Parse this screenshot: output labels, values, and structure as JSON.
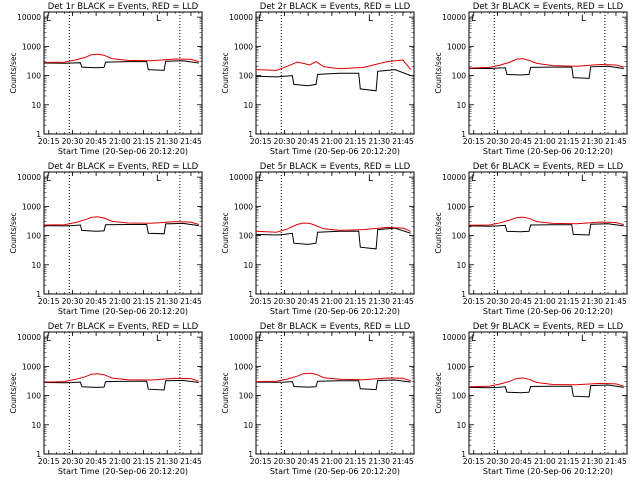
{
  "figure": {
    "background": "#ffffff",
    "event_color": "#000000",
    "lld_color": "#dd0000",
    "marker_color": "#000000"
  },
  "chart_data": [
    {
      "type": "line",
      "title": "Det 1r BLACK = Events, RED = LLD",
      "xlabel": "Start Time (20-Sep-06 20:12:20)",
      "ylabel": "Counts/sec",
      "x_ticks": [
        "20:15",
        "20:30",
        "20:45",
        "21:00",
        "21:15",
        "21:30",
        "21:45"
      ],
      "y_ticks": [
        "1",
        "10",
        "100",
        "1000",
        "10000"
      ],
      "xlim": [
        "20:12",
        "21:52"
      ],
      "ylim": [
        1,
        15000
      ],
      "y_scale": "log",
      "marker_label": "L",
      "vertical_markers": [
        "20:28",
        "21:38"
      ],
      "series": [
        {
          "name": "Events",
          "color": "#000000",
          "x": [
            "20:12",
            "20:25",
            "20:30",
            "20:35",
            "20:36",
            "20:45",
            "20:50",
            "20:51",
            "21:05",
            "21:17",
            "21:18",
            "21:28",
            "21:29",
            "21:40",
            "21:50"
          ],
          "y": [
            270,
            265,
            270,
            275,
            195,
            185,
            190,
            290,
            300,
            300,
            160,
            150,
            310,
            320,
            270
          ]
        },
        {
          "name": "LLD",
          "color": "#dd0000",
          "x": [
            "20:12",
            "20:25",
            "20:32",
            "20:38",
            "20:42",
            "20:46",
            "20:50",
            "20:55",
            "21:05",
            "21:20",
            "21:35",
            "21:45",
            "21:50"
          ],
          "y": [
            280,
            290,
            340,
            420,
            520,
            540,
            500,
            380,
            330,
            320,
            370,
            360,
            300
          ]
        }
      ]
    },
    {
      "type": "line",
      "title": "Det 2r BLACK = Events, RED = LLD",
      "xlabel": "Start Time (20-Sep-06 20:12:20)",
      "ylabel": "Counts/sec",
      "x_ticks": [
        "20:15",
        "20:30",
        "20:45",
        "21:00",
        "21:15",
        "21:30",
        "21:45"
      ],
      "y_ticks": [
        "1",
        "10",
        "100",
        "1000",
        "10000"
      ],
      "xlim": [
        "20:12",
        "21:52"
      ],
      "ylim": [
        1,
        15000
      ],
      "y_scale": "log",
      "marker_label": "L",
      "vertical_markers": [
        "20:28",
        "21:38"
      ],
      "series": [
        {
          "name": "Events",
          "color": "#000000",
          "x": [
            "20:12",
            "20:25",
            "20:30",
            "20:35",
            "20:36",
            "20:45",
            "20:50",
            "20:51",
            "21:05",
            "21:17",
            "21:18",
            "21:28",
            "21:29",
            "21:40",
            "21:50"
          ],
          "y": [
            95,
            90,
            95,
            100,
            50,
            45,
            50,
            110,
            120,
            120,
            35,
            30,
            140,
            160,
            100
          ]
        },
        {
          "name": "LLD",
          "color": "#dd0000",
          "x": [
            "20:12",
            "20:25",
            "20:32",
            "20:38",
            "20:42",
            "20:46",
            "20:50",
            "20:55",
            "21:05",
            "21:20",
            "21:35",
            "21:45",
            "21:50"
          ],
          "y": [
            160,
            150,
            210,
            290,
            260,
            230,
            300,
            200,
            170,
            190,
            300,
            340,
            160
          ]
        }
      ]
    },
    {
      "type": "line",
      "title": "Det 3r BLACK = Events, RED = LLD",
      "xlabel": "Start Time (20-Sep-06 20:12:20)",
      "ylabel": "Counts/sec",
      "x_ticks": [
        "20:15",
        "20:30",
        "20:45",
        "21:00",
        "21:15",
        "21:30",
        "21:45"
      ],
      "y_ticks": [
        "1",
        "10",
        "100",
        "1000",
        "10000"
      ],
      "xlim": [
        "20:12",
        "21:52"
      ],
      "ylim": [
        1,
        15000
      ],
      "y_scale": "log",
      "marker_label": "L",
      "vertical_markers": [
        "20:28",
        "21:38"
      ],
      "series": [
        {
          "name": "Events",
          "color": "#000000",
          "x": [
            "20:12",
            "20:25",
            "20:30",
            "20:35",
            "20:36",
            "20:45",
            "20:50",
            "20:51",
            "21:05",
            "21:17",
            "21:18",
            "21:28",
            "21:29",
            "21:40",
            "21:50"
          ],
          "y": [
            175,
            175,
            180,
            185,
            110,
            105,
            110,
            190,
            195,
            195,
            85,
            80,
            200,
            210,
            175
          ]
        },
        {
          "name": "LLD",
          "color": "#dd0000",
          "x": [
            "20:12",
            "20:25",
            "20:32",
            "20:38",
            "20:42",
            "20:46",
            "20:50",
            "20:55",
            "21:05",
            "21:20",
            "21:35",
            "21:45",
            "21:50"
          ],
          "y": [
            180,
            190,
            230,
            290,
            360,
            380,
            330,
            260,
            220,
            210,
            240,
            230,
            195
          ]
        }
      ]
    },
    {
      "type": "line",
      "title": "Det 4r BLACK = Events, RED = LLD",
      "xlabel": "Start Time (20-Sep-06 20:12:20)",
      "ylabel": "Counts/sec",
      "x_ticks": [
        "20:15",
        "20:30",
        "20:45",
        "21:00",
        "21:15",
        "21:30",
        "21:45"
      ],
      "y_ticks": [
        "1",
        "10",
        "100",
        "1000",
        "10000"
      ],
      "xlim": [
        "20:12",
        "21:52"
      ],
      "ylim": [
        1,
        15000
      ],
      "y_scale": "log",
      "marker_label": "L",
      "vertical_markers": [
        "20:28",
        "21:38"
      ],
      "series": [
        {
          "name": "Events",
          "color": "#000000",
          "x": [
            "20:12",
            "20:25",
            "20:30",
            "20:35",
            "20:36",
            "20:45",
            "20:50",
            "20:51",
            "21:05",
            "21:17",
            "21:18",
            "21:28",
            "21:29",
            "21:40",
            "21:50"
          ],
          "y": [
            220,
            215,
            220,
            230,
            150,
            140,
            145,
            235,
            240,
            240,
            120,
            115,
            250,
            260,
            220
          ]
        },
        {
          "name": "LLD",
          "color": "#dd0000",
          "x": [
            "20:12",
            "20:25",
            "20:32",
            "20:38",
            "20:42",
            "20:46",
            "20:50",
            "20:55",
            "21:05",
            "21:20",
            "21:35",
            "21:45",
            "21:50"
          ],
          "y": [
            230,
            235,
            280,
            350,
            420,
            440,
            400,
            310,
            270,
            265,
            300,
            290,
            240
          ]
        }
      ]
    },
    {
      "type": "line",
      "title": "Det 5r BLACK = Events, RED = LLD",
      "xlabel": "Start Time (20-Sep-06 20:12:20)",
      "ylabel": "Counts/sec",
      "x_ticks": [
        "20:15",
        "20:30",
        "20:45",
        "21:00",
        "21:15",
        "21:30",
        "21:45"
      ],
      "y_ticks": [
        "1",
        "10",
        "100",
        "1000",
        "10000"
      ],
      "xlim": [
        "20:12",
        "21:52"
      ],
      "ylim": [
        1,
        15000
      ],
      "y_scale": "log",
      "marker_label": "L",
      "vertical_markers": [
        "20:28",
        "21:38"
      ],
      "series": [
        {
          "name": "Events",
          "color": "#000000",
          "x": [
            "20:12",
            "20:25",
            "20:30",
            "20:35",
            "20:36",
            "20:45",
            "20:50",
            "20:51",
            "21:05",
            "21:17",
            "21:18",
            "21:28",
            "21:29",
            "21:40",
            "21:50"
          ],
          "y": [
            110,
            105,
            110,
            120,
            55,
            50,
            55,
            130,
            140,
            140,
            40,
            35,
            160,
            180,
            120
          ]
        },
        {
          "name": "LLD",
          "color": "#dd0000",
          "x": [
            "20:12",
            "20:25",
            "20:32",
            "20:38",
            "20:42",
            "20:46",
            "20:50",
            "20:55",
            "21:05",
            "21:20",
            "21:35",
            "21:45",
            "21:50"
          ],
          "y": [
            140,
            130,
            170,
            240,
            270,
            260,
            220,
            170,
            150,
            160,
            190,
            180,
            140
          ]
        }
      ]
    },
    {
      "type": "line",
      "title": "Det 6r BLACK = Events, RED = LLD",
      "xlabel": "Start Time (20-Sep-06 20:12:20)",
      "ylabel": "Counts/sec",
      "x_ticks": [
        "20:15",
        "20:30",
        "20:45",
        "21:00",
        "21:15",
        "21:30",
        "21:45"
      ],
      "y_ticks": [
        "1",
        "10",
        "100",
        "1000",
        "10000"
      ],
      "xlim": [
        "20:12",
        "21:52"
      ],
      "ylim": [
        1,
        15000
      ],
      "y_scale": "log",
      "marker_label": "L",
      "vertical_markers": [
        "20:28",
        "21:38"
      ],
      "series": [
        {
          "name": "Events",
          "color": "#000000",
          "x": [
            "20:12",
            "20:25",
            "20:30",
            "20:35",
            "20:36",
            "20:45",
            "20:50",
            "20:51",
            "21:05",
            "21:17",
            "21:18",
            "21:28",
            "21:29",
            "21:40",
            "21:50"
          ],
          "y": [
            215,
            210,
            215,
            225,
            140,
            135,
            140,
            230,
            235,
            235,
            110,
            105,
            245,
            255,
            215
          ]
        },
        {
          "name": "LLD",
          "color": "#dd0000",
          "x": [
            "20:12",
            "20:25",
            "20:32",
            "20:38",
            "20:42",
            "20:46",
            "20:50",
            "20:55",
            "21:05",
            "21:20",
            "21:35",
            "21:45",
            "21:50"
          ],
          "y": [
            225,
            230,
            275,
            340,
            410,
            430,
            390,
            300,
            260,
            255,
            290,
            280,
            235
          ]
        }
      ]
    },
    {
      "type": "line",
      "title": "Det 7r BLACK = Events, RED = LLD",
      "xlabel": "Start Time (20-Sep-06 20:12:20)",
      "ylabel": "Counts/sec",
      "x_ticks": [
        "20:15",
        "20:30",
        "20:45",
        "21:00",
        "21:15",
        "21:30",
        "21:45"
      ],
      "y_ticks": [
        "1",
        "10",
        "100",
        "1000",
        "10000"
      ],
      "xlim": [
        "20:12",
        "21:52"
      ],
      "ylim": [
        1,
        15000
      ],
      "y_scale": "log",
      "marker_label": "L",
      "vertical_markers": [
        "20:28",
        "21:38"
      ],
      "series": [
        {
          "name": "Events",
          "color": "#000000",
          "x": [
            "20:12",
            "20:25",
            "20:30",
            "20:35",
            "20:36",
            "20:45",
            "20:50",
            "20:51",
            "21:05",
            "21:17",
            "21:18",
            "21:28",
            "21:29",
            "21:40",
            "21:50"
          ],
          "y": [
            280,
            275,
            280,
            290,
            200,
            190,
            195,
            300,
            310,
            310,
            165,
            155,
            320,
            330,
            280
          ]
        },
        {
          "name": "LLD",
          "color": "#dd0000",
          "x": [
            "20:12",
            "20:25",
            "20:32",
            "20:38",
            "20:42",
            "20:46",
            "20:50",
            "20:55",
            "21:05",
            "21:20",
            "21:35",
            "21:45",
            "21:50"
          ],
          "y": [
            290,
            300,
            360,
            440,
            540,
            560,
            520,
            400,
            350,
            340,
            390,
            380,
            310
          ]
        }
      ]
    },
    {
      "type": "line",
      "title": "Det 8r BLACK = Events, RED = LLD",
      "xlabel": "Start Time (20-Sep-06 20:12:20)",
      "ylabel": "Counts/sec",
      "x_ticks": [
        "20:15",
        "20:30",
        "20:45",
        "21:00",
        "21:15",
        "21:30",
        "21:45"
      ],
      "y_ticks": [
        "1",
        "10",
        "100",
        "1000",
        "10000"
      ],
      "xlim": [
        "20:12",
        "21:52"
      ],
      "ylim": [
        1,
        15000
      ],
      "y_scale": "log",
      "marker_label": "L",
      "vertical_markers": [
        "20:28",
        "21:38"
      ],
      "series": [
        {
          "name": "Events",
          "color": "#000000",
          "x": [
            "20:12",
            "20:25",
            "20:30",
            "20:35",
            "20:36",
            "20:45",
            "20:50",
            "20:51",
            "21:05",
            "21:17",
            "21:18",
            "21:28",
            "21:29",
            "21:40",
            "21:50"
          ],
          "y": [
            290,
            285,
            290,
            300,
            205,
            195,
            200,
            310,
            320,
            320,
            170,
            160,
            330,
            340,
            290
          ]
        },
        {
          "name": "LLD",
          "color": "#dd0000",
          "x": [
            "20:12",
            "20:25",
            "20:32",
            "20:38",
            "20:42",
            "20:46",
            "20:50",
            "20:55",
            "21:05",
            "21:20",
            "21:35",
            "21:45",
            "21:50"
          ],
          "y": [
            300,
            310,
            370,
            460,
            560,
            580,
            540,
            410,
            360,
            350,
            400,
            390,
            320
          ]
        }
      ]
    },
    {
      "type": "line",
      "title": "Det 9r BLACK = Events, RED = LLD",
      "xlabel": "Start Time (20-Sep-06 20:12:20)",
      "ylabel": "Counts/sec",
      "x_ticks": [
        "20:15",
        "20:30",
        "20:45",
        "21:00",
        "21:15",
        "21:30",
        "21:45"
      ],
      "y_ticks": [
        "1",
        "10",
        "100",
        "1000",
        "10000"
      ],
      "xlim": [
        "20:12",
        "21:52"
      ],
      "ylim": [
        1,
        15000
      ],
      "y_scale": "log",
      "marker_label": "L",
      "vertical_markers": [
        "20:28",
        "21:38"
      ],
      "series": [
        {
          "name": "Events",
          "color": "#000000",
          "x": [
            "20:12",
            "20:25",
            "20:30",
            "20:35",
            "20:36",
            "20:45",
            "20:50",
            "20:51",
            "21:05",
            "21:17",
            "21:18",
            "21:28",
            "21:29",
            "21:40",
            "21:50"
          ],
          "y": [
            190,
            185,
            190,
            200,
            130,
            125,
            130,
            205,
            210,
            210,
            95,
            90,
            220,
            230,
            190
          ]
        },
        {
          "name": "LLD",
          "color": "#dd0000",
          "x": [
            "20:12",
            "20:25",
            "20:32",
            "20:38",
            "20:42",
            "20:46",
            "20:50",
            "20:55",
            "21:05",
            "21:20",
            "21:35",
            "21:45",
            "21:50"
          ],
          "y": [
            200,
            210,
            250,
            310,
            380,
            400,
            360,
            280,
            240,
            235,
            260,
            250,
            210
          ]
        }
      ]
    }
  ]
}
